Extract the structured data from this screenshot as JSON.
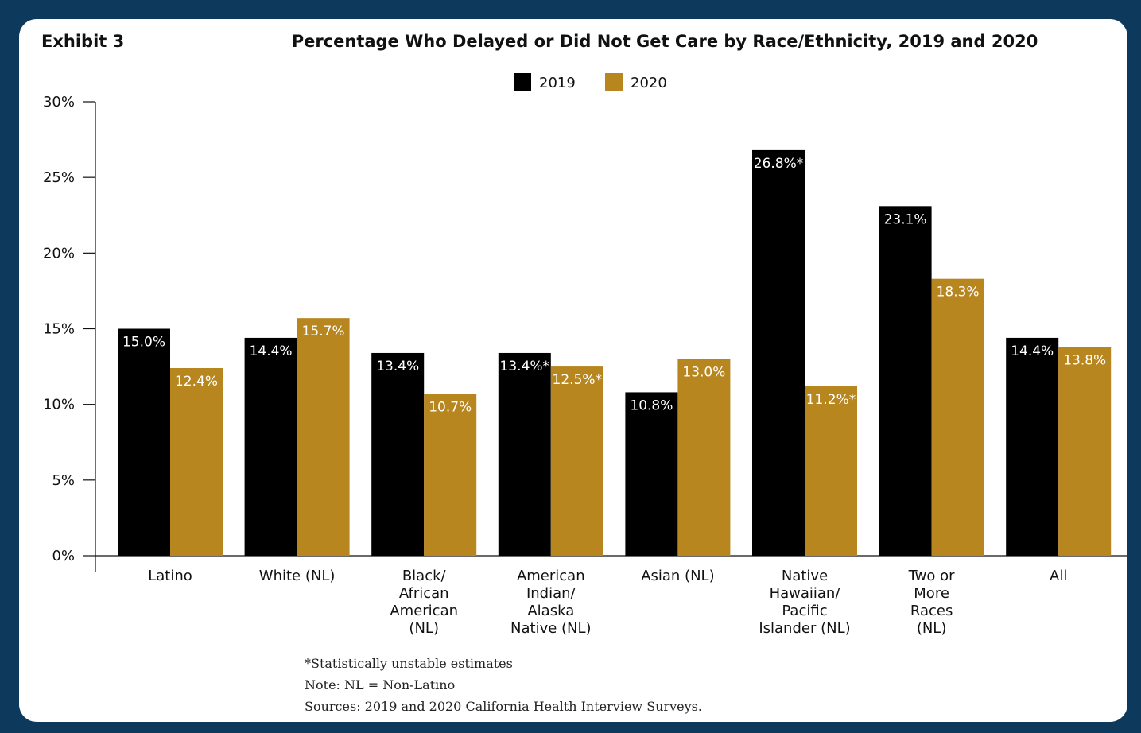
{
  "exhibit_label": "Exhibit 3",
  "colors": {
    "frame": "#0d3a5c",
    "series_2019": "#000000",
    "series_2020": "#b8861e",
    "label_text": "#ffffff"
  },
  "chart_data": {
    "type": "bar",
    "title": "Percentage Who Delayed or Did Not Get Care by Race/Ethnicity, 2019 and 2020",
    "xlabel": "",
    "ylabel": "",
    "ylim": [
      0,
      30
    ],
    "yticks": [
      0,
      5,
      10,
      15,
      20,
      25,
      30
    ],
    "ytick_labels": [
      "0%",
      "5%",
      "10%",
      "15%",
      "20%",
      "25%",
      "30%"
    ],
    "grid": false,
    "legend_position": "top-center",
    "categories": [
      [
        "Latino"
      ],
      [
        "White (NL)"
      ],
      [
        "Black/",
        "African",
        "American",
        "(NL)"
      ],
      [
        "American",
        "Indian/",
        "Alaska",
        "Native (NL)"
      ],
      [
        "Asian (NL)"
      ],
      [
        "Native",
        "Hawaiian/",
        "Pacific",
        "Islander (NL)"
      ],
      [
        "Two or",
        "More",
        "Races",
        "(NL)"
      ],
      [
        "All"
      ]
    ],
    "series": [
      {
        "name": "2019",
        "color": "#000000",
        "values": [
          15.0,
          14.4,
          13.4,
          13.4,
          10.8,
          26.8,
          23.1,
          14.4
        ],
        "labels": [
          "15.0%",
          "14.4%",
          "13.4%",
          "13.4%*",
          "10.8%",
          "26.8%*",
          "23.1%",
          "14.4%"
        ]
      },
      {
        "name": "2020",
        "color": "#b8861e",
        "values": [
          12.4,
          15.7,
          10.7,
          12.5,
          13.0,
          11.2,
          18.3,
          13.8
        ],
        "labels": [
          "12.4%",
          "15.7%",
          "10.7%",
          "12.5%*",
          "13.0%",
          "11.2%*",
          "18.3%",
          "13.8%"
        ]
      }
    ]
  },
  "notes": {
    "unstable": "*Statistically unstable estimates",
    "nl": "Note: NL = Non-Latino",
    "sources": "Sources:  2019 and 2020 California Health Interview Surveys."
  }
}
